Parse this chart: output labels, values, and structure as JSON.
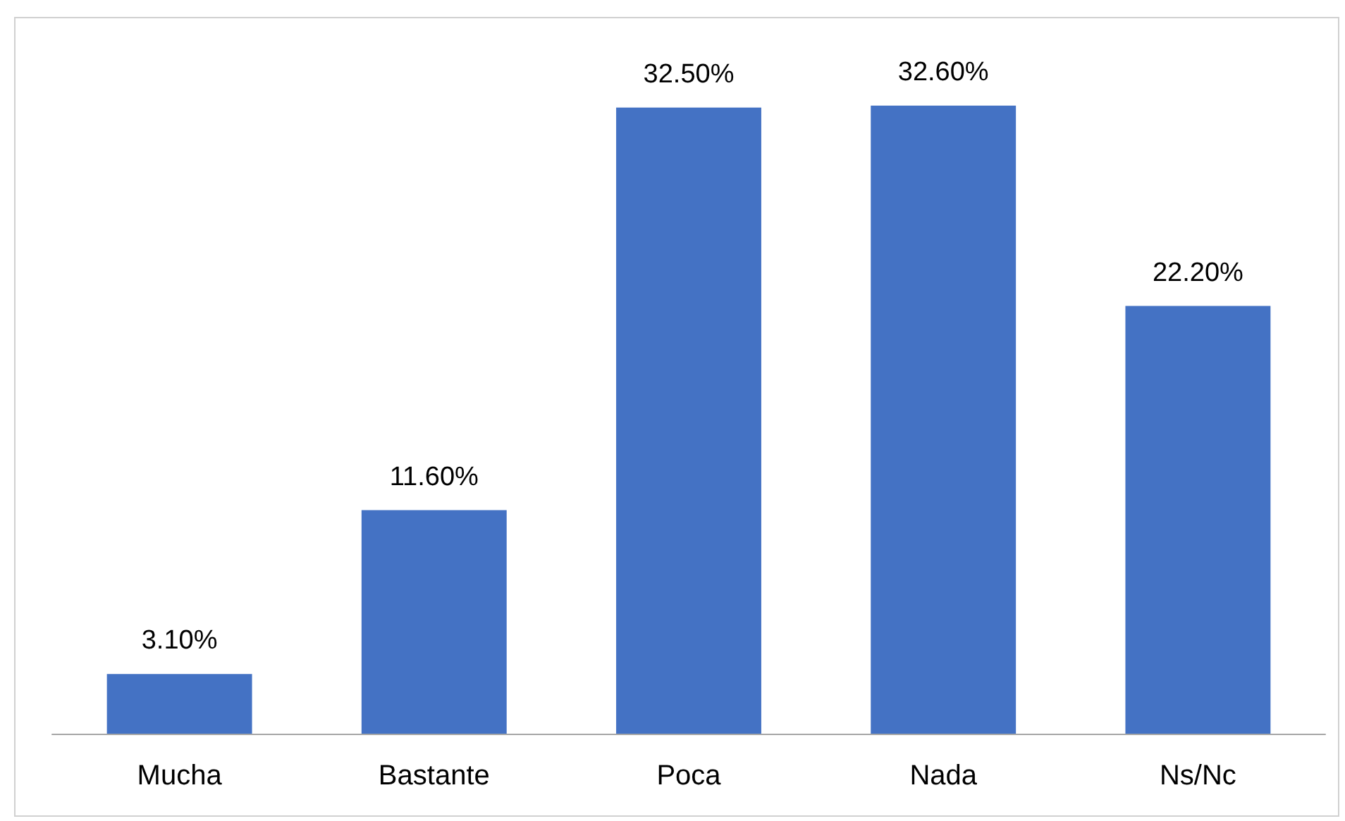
{
  "chart_data": {
    "type": "bar",
    "categories": [
      "Mucha",
      "Bastante",
      "Poca",
      "Nada",
      "Ns/Nc"
    ],
    "values": [
      3.1,
      11.6,
      32.5,
      32.6,
      22.2
    ],
    "value_labels": [
      "3.10%",
      "11.60%",
      "32.50%",
      "32.60%",
      "22.20%"
    ],
    "color": "#4472c4"
  }
}
